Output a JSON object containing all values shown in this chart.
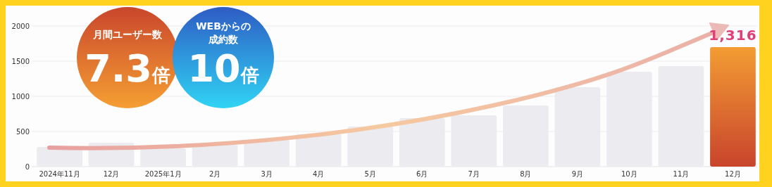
{
  "chart_data": {
    "type": "bar",
    "categories": [
      "2024年11月",
      "12月",
      "2025年1月",
      "2月",
      "3月",
      "4月",
      "5月",
      "6月",
      "7月",
      "8月",
      "9月",
      "10月",
      "11月",
      "12月"
    ],
    "values": [
      280,
      340,
      260,
      310,
      380,
      460,
      570,
      690,
      730,
      870,
      1130,
      1350,
      1430,
      1700
    ],
    "colors": [
      "#ebebf0",
      "#ebebf0",
      "#ebebf0",
      "#ebebf0",
      "#ebebf0",
      "#ebebf0",
      "#ebebf0",
      "#ebebf0",
      "#ebebf0",
      "#ebebf0",
      "#ebebf0",
      "#ebebf0",
      "#ebebf0",
      "#e0702e"
    ],
    "ylim": [
      0,
      2000
    ],
    "yticks": [
      0,
      500,
      1000,
      1500,
      2000
    ],
    "grid": "y",
    "annotations": [
      "月間ユーザー数",
      "7.3倍",
      "WEBからの",
      "成約数",
      "10倍",
      "1,316"
    ]
  }
}
